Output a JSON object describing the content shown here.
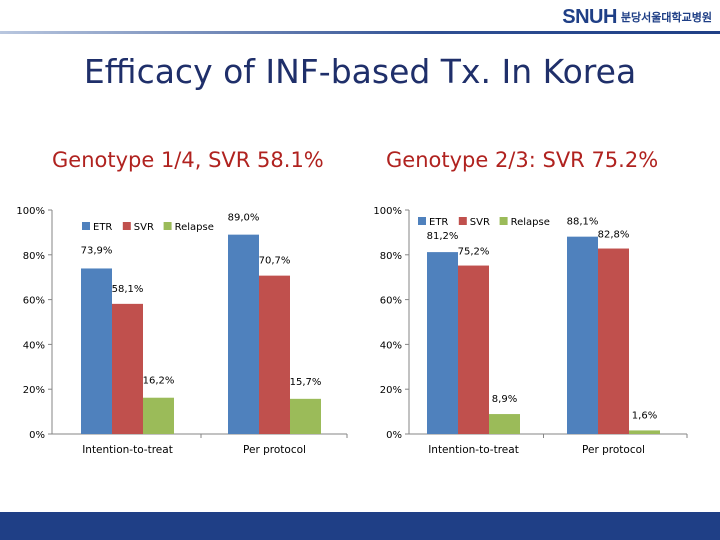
{
  "header": {
    "logo_mark": "SNUH",
    "logo_text": "분당서울대학교병원",
    "title": "Efficacy of INF-based Tx. In Korea"
  },
  "colors": {
    "title": "#1f2f6a",
    "subtitle": "#b0221f",
    "brand": "#1f3f86"
  },
  "chart_data": [
    {
      "type": "bar",
      "title": "Genotype 1/4, SVR 58.1%",
      "categories": [
        "Intention-to-treat",
        "Per protocol"
      ],
      "series": [
        {
          "name": "ETR",
          "color": "#4f81bd",
          "values": [
            73.9,
            89.0
          ],
          "labels": [
            "73,9%",
            "89,0%"
          ]
        },
        {
          "name": "SVR",
          "color": "#c0504d",
          "values": [
            58.1,
            70.7
          ],
          "labels": [
            "58,1%",
            "70,7%"
          ]
        },
        {
          "name": "Relapse",
          "color": "#9bbb59",
          "values": [
            16.2,
            15.7
          ],
          "labels": [
            "16,2%",
            "15,7%"
          ]
        }
      ],
      "yticks": [
        "0%",
        "20%",
        "40%",
        "60%",
        "80%",
        "100%"
      ],
      "ylim": [
        0,
        100
      ],
      "legend": "top-left"
    },
    {
      "type": "bar",
      "title": "Genotype 2/3: SVR 75.2%",
      "categories": [
        "Intention-to-treat",
        "Per protocol"
      ],
      "series": [
        {
          "name": "ETR",
          "color": "#4f81bd",
          "values": [
            81.2,
            88.1
          ],
          "labels": [
            "81,2%",
            "88,1%"
          ]
        },
        {
          "name": "SVR",
          "color": "#c0504d",
          "values": [
            75.2,
            82.8
          ],
          "labels": [
            "75,2%",
            "82,8%"
          ]
        },
        {
          "name": "Relapse",
          "color": "#9bbb59",
          "values": [
            8.9,
            1.6
          ],
          "labels": [
            "8,9%",
            "1,6%"
          ]
        }
      ],
      "yticks": [
        "0%",
        "20%",
        "40%",
        "60%",
        "80%",
        "100%"
      ],
      "ylim": [
        0,
        100
      ],
      "legend": "top-left"
    }
  ]
}
